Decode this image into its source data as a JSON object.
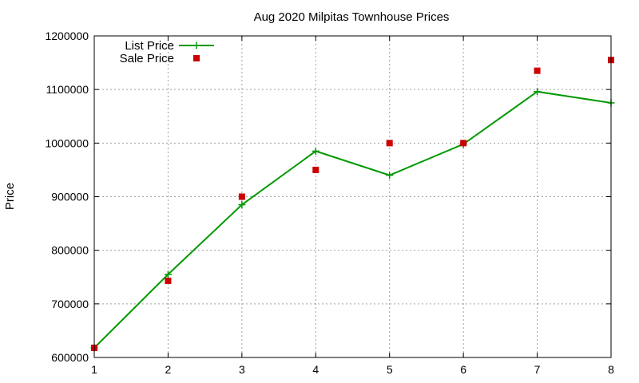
{
  "chart_data": {
    "type": "line",
    "title": "Aug 2020 Milpitas Townhouse Prices",
    "xlabel": "",
    "ylabel": "Price",
    "x": [
      1,
      2,
      3,
      4,
      5,
      6,
      7,
      8
    ],
    "xlim": [
      1,
      8
    ],
    "ylim": [
      600000,
      1200000
    ],
    "xticks": [
      "1",
      "2",
      "3",
      "4",
      "5",
      "6",
      "7",
      "8"
    ],
    "yticks": [
      "600000",
      "700000",
      "800000",
      "900000",
      "1000000",
      "1100000",
      "1200000"
    ],
    "grid": true,
    "legend_position": "top-left",
    "series": [
      {
        "name": "List Price",
        "style": "line-with-plus-markers",
        "color": "#009900",
        "values": [
          618000,
          755000,
          885000,
          985000,
          940000,
          998000,
          1096000,
          1075000
        ]
      },
      {
        "name": "Sale Price",
        "style": "square-markers",
        "color": "#cc0000",
        "values": [
          618000,
          743000,
          900000,
          950000,
          1000000,
          1000000,
          1135000,
          1155000
        ]
      }
    ]
  }
}
